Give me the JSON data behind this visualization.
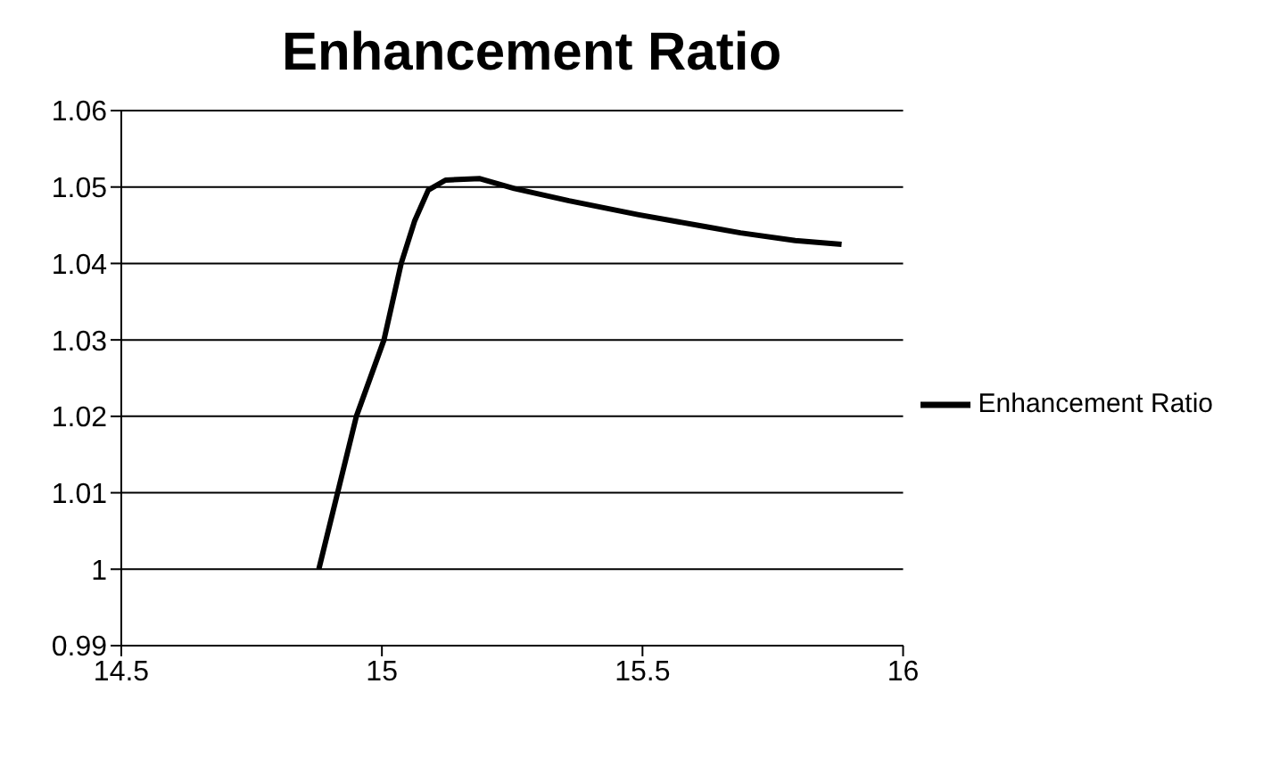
{
  "chart_data": {
    "type": "line",
    "title": "Enhancement Ratio",
    "x": [
      14.879,
      14.951,
      15.004,
      15.037,
      15.063,
      15.089,
      15.122,
      15.188,
      15.254,
      15.359,
      15.491,
      15.622,
      15.688,
      15.793,
      15.882
    ],
    "series": [
      {
        "name": "Enhancement Ratio",
        "color": "#000000",
        "values": [
          1.0,
          1.02,
          1.03,
          1.04,
          1.0456,
          1.0496,
          1.0509,
          1.0511,
          1.0498,
          1.0482,
          1.0464,
          1.0448,
          1.044,
          1.043,
          1.0425
        ]
      }
    ],
    "xlim": [
      14.5,
      16
    ],
    "xticks": [
      14.5,
      15,
      15.5,
      16
    ],
    "ylim": [
      0.99,
      1.06
    ],
    "yticks": [
      {
        "value": 0.99,
        "label": "0.99"
      },
      {
        "value": 1,
        "label": "1"
      },
      {
        "value": 1.01,
        "label": "1.01"
      },
      {
        "value": 1.02,
        "label": "1.02"
      },
      {
        "value": 1.03,
        "label": "1.03"
      },
      {
        "value": 1.04,
        "label": "1.04"
      },
      {
        "value": 1.05,
        "label": "1.05"
      },
      {
        "value": 1.06,
        "label": "1.06"
      }
    ],
    "grid": "y",
    "legend": "right",
    "marker": "none",
    "line_style": "solid"
  }
}
